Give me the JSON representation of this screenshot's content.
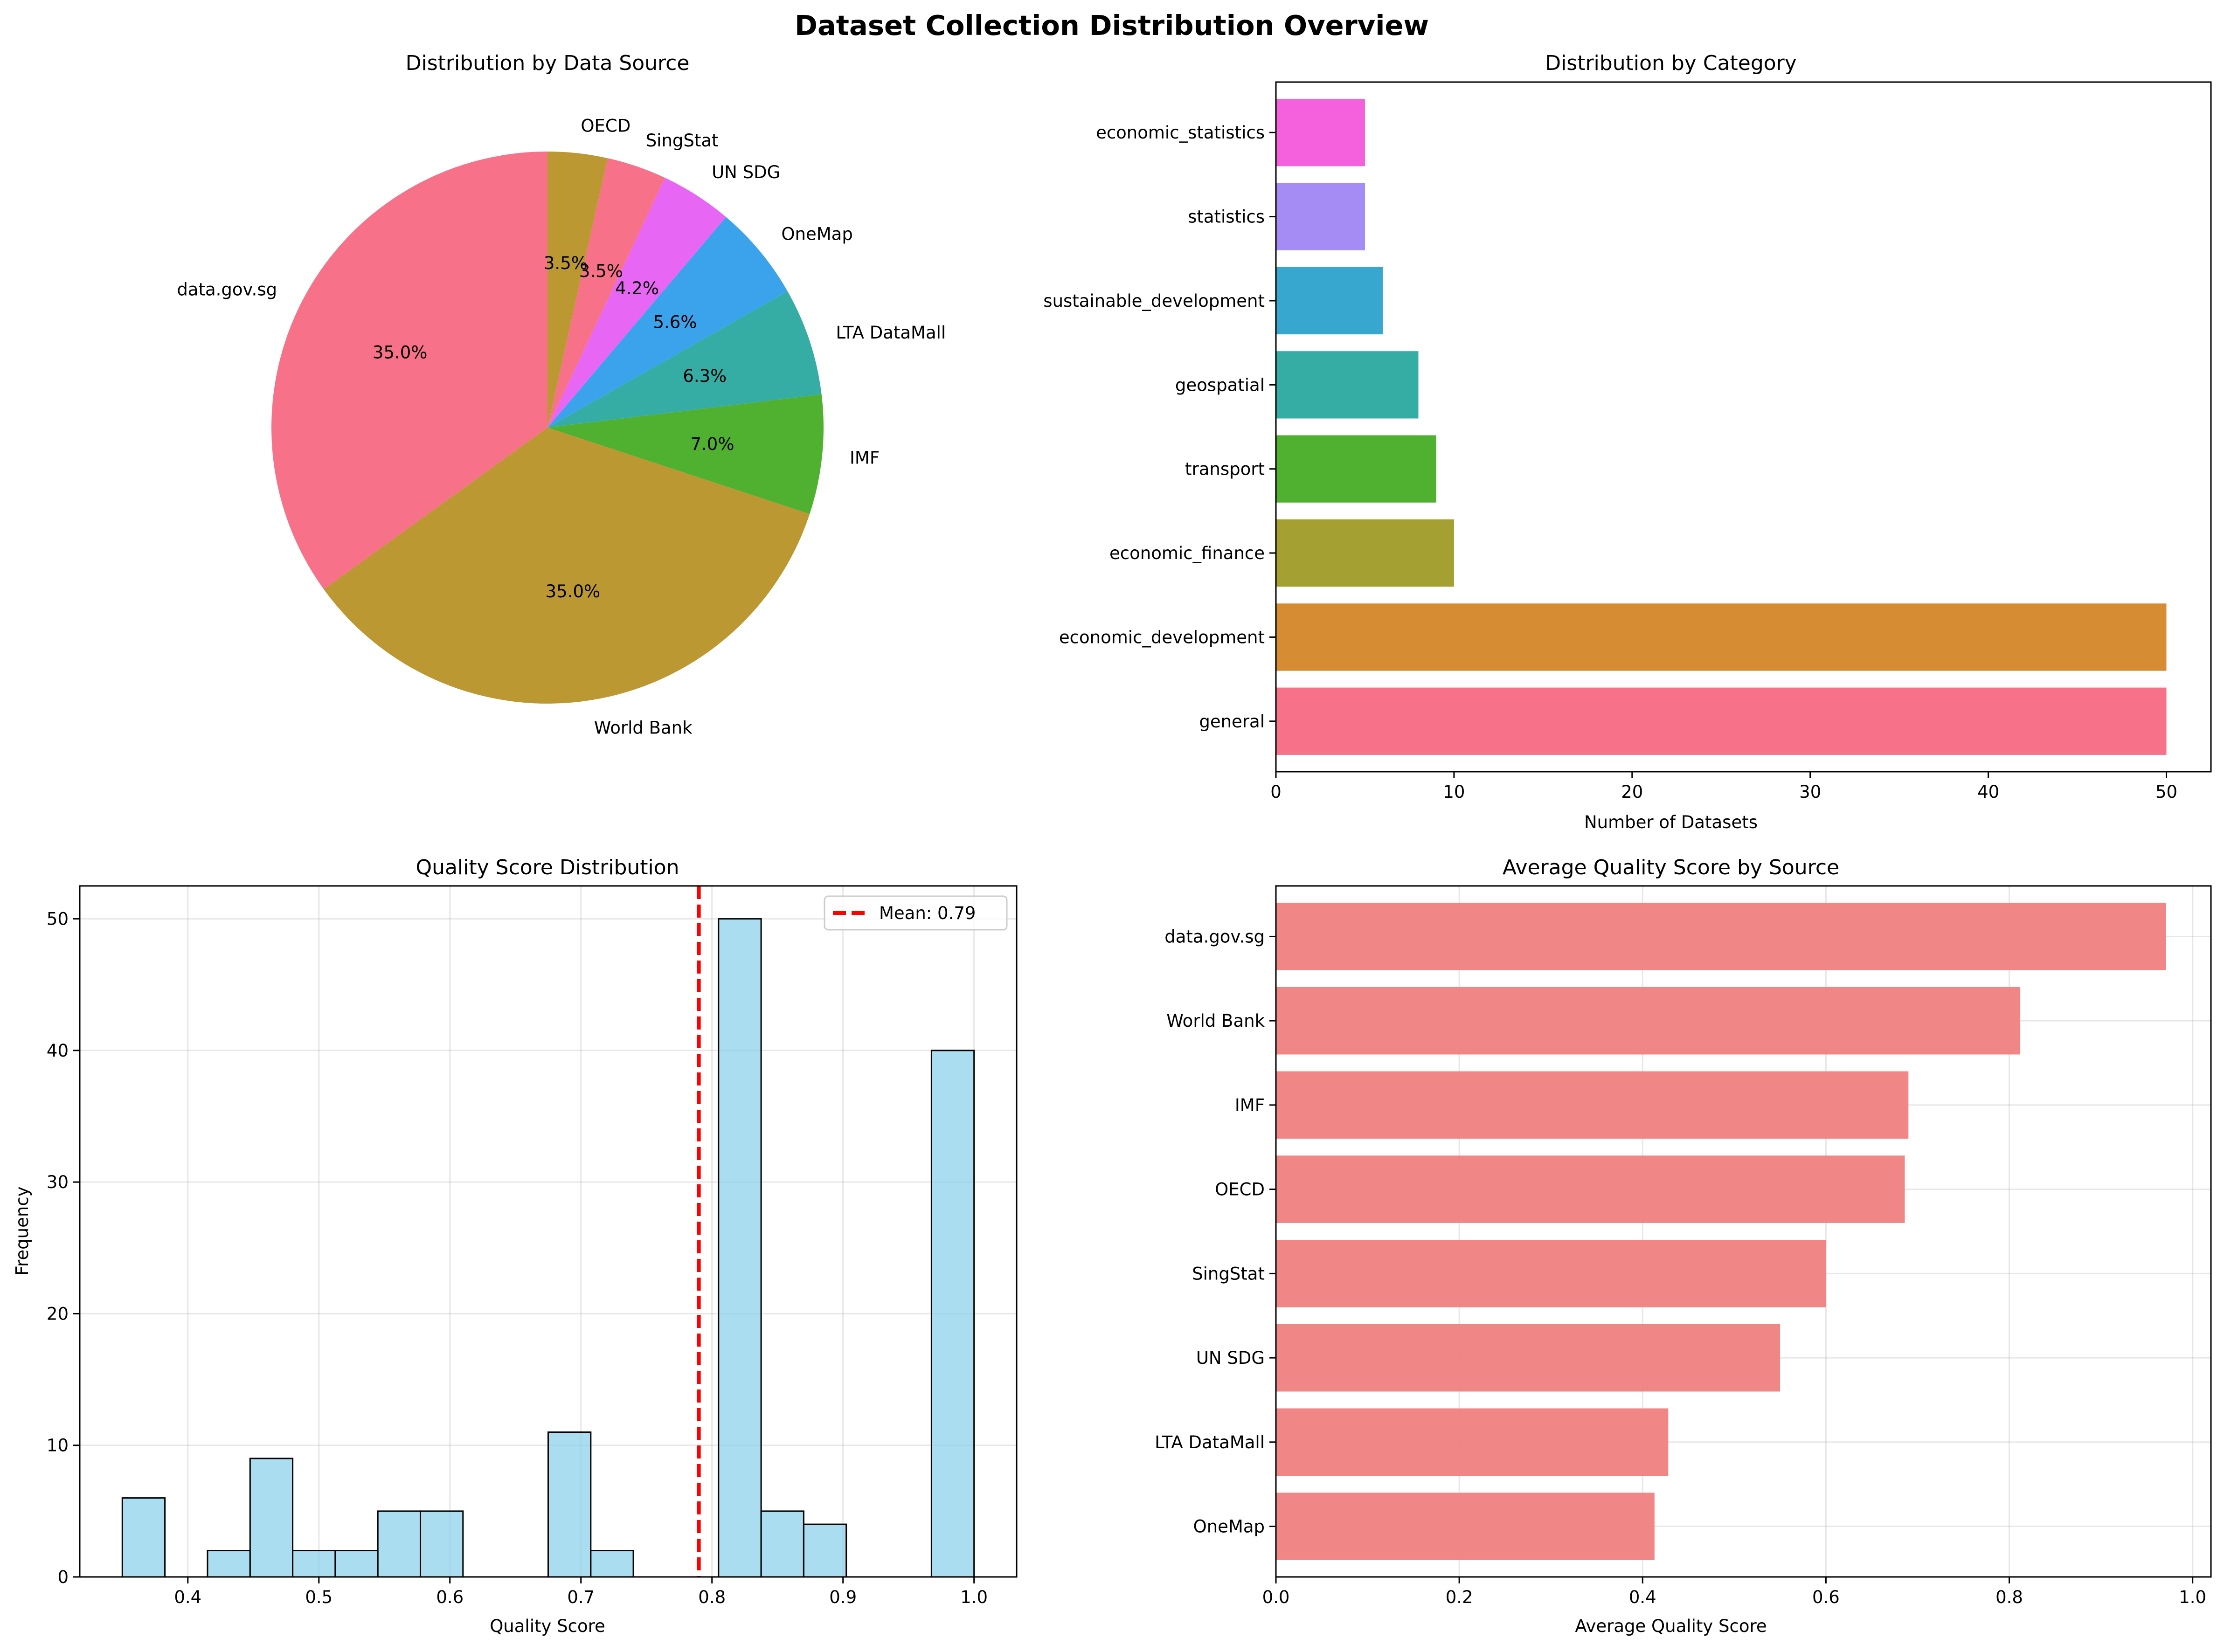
{
  "figure": {
    "title": "Dataset Collection Distribution Overview"
  },
  "chart_data": [
    {
      "type": "pie",
      "title": "Distribution by Data Source",
      "labels": [
        "data.gov.sg",
        "World Bank",
        "IMF",
        "LTA DataMall",
        "OneMap",
        "UN SDG",
        "SingStat",
        "OECD"
      ],
      "values": [
        35.0,
        35.0,
        7.0,
        6.3,
        5.6,
        4.2,
        3.5,
        3.5
      ],
      "pct_labels": [
        "35.0%",
        "35.0%",
        "7.0%",
        "6.3%",
        "5.6%",
        "4.2%",
        "3.5%",
        "3.5%"
      ],
      "colors": [
        "#f77189",
        "#bb9832",
        "#50b131",
        "#36ada4",
        "#3ba3ec",
        "#e866f4",
        "#f77189",
        "#bb9832"
      ],
      "start_angle": 90,
      "direction": "counterclockwise"
    },
    {
      "type": "bar",
      "orientation": "horizontal",
      "title": "Distribution by Category",
      "categories": [
        "general",
        "economic_development",
        "economic_finance",
        "transport",
        "geospatial",
        "sustainable_development",
        "statistics",
        "economic_statistics"
      ],
      "values": [
        50,
        50,
        10,
        9,
        8,
        6,
        5,
        5
      ],
      "colors": [
        "#f77189",
        "#d58c32",
        "#a4a031",
        "#50b131",
        "#36ada4",
        "#38a7d0",
        "#a48cf4",
        "#f561dd"
      ],
      "xlabel": "Number of Datasets",
      "xlim": [
        0,
        52.5
      ],
      "xticks": [
        0,
        10,
        20,
        30,
        40,
        50
      ],
      "grid": false
    },
    {
      "type": "histogram",
      "title": "Quality Score Distribution",
      "xlabel": "Quality Score",
      "ylabel": "Frequency",
      "bin_edges": [
        0.35,
        0.3825,
        0.415,
        0.4475,
        0.48,
        0.5125,
        0.545,
        0.5775,
        0.61,
        0.6425,
        0.675,
        0.7075,
        0.74,
        0.7725,
        0.805,
        0.8375,
        0.87,
        0.9025,
        0.935,
        0.9675,
        1.0
      ],
      "counts": [
        6,
        0,
        2,
        9,
        2,
        2,
        5,
        5,
        0,
        0,
        11,
        2,
        0,
        0,
        50,
        5,
        4,
        0,
        0,
        40
      ],
      "bar_color": "#87ceeb",
      "mean": 0.79,
      "mean_label": "Mean: 0.79",
      "legend": "top-right",
      "xlim": [
        0.3175,
        1.0325
      ],
      "ylim": [
        0,
        52.5
      ],
      "xticks": [
        0.4,
        0.5,
        0.6,
        0.7,
        0.8,
        0.9,
        1.0
      ],
      "xtick_labels": [
        "0.4",
        "0.5",
        "0.6",
        "0.7",
        "0.8",
        "0.9",
        "1.0"
      ],
      "yticks": [
        0,
        10,
        20,
        30,
        40,
        50
      ],
      "grid": true
    },
    {
      "type": "bar",
      "orientation": "horizontal",
      "title": "Average Quality Score by Source",
      "categories": [
        "OneMap",
        "LTA DataMall",
        "UN SDG",
        "SingStat",
        "OECD",
        "IMF",
        "World Bank",
        "data.gov.sg"
      ],
      "values": [
        0.413,
        0.428,
        0.55,
        0.6,
        0.686,
        0.69,
        0.812,
        0.971
      ],
      "color": "#f08080",
      "xlabel": "Average Quality Score",
      "xlim": [
        0,
        1.02
      ],
      "xticks": [
        0.0,
        0.2,
        0.4,
        0.6,
        0.8,
        1.0
      ],
      "xtick_labels": [
        "0.0",
        "0.2",
        "0.4",
        "0.6",
        "0.8",
        "1.0"
      ],
      "grid": true
    }
  ]
}
